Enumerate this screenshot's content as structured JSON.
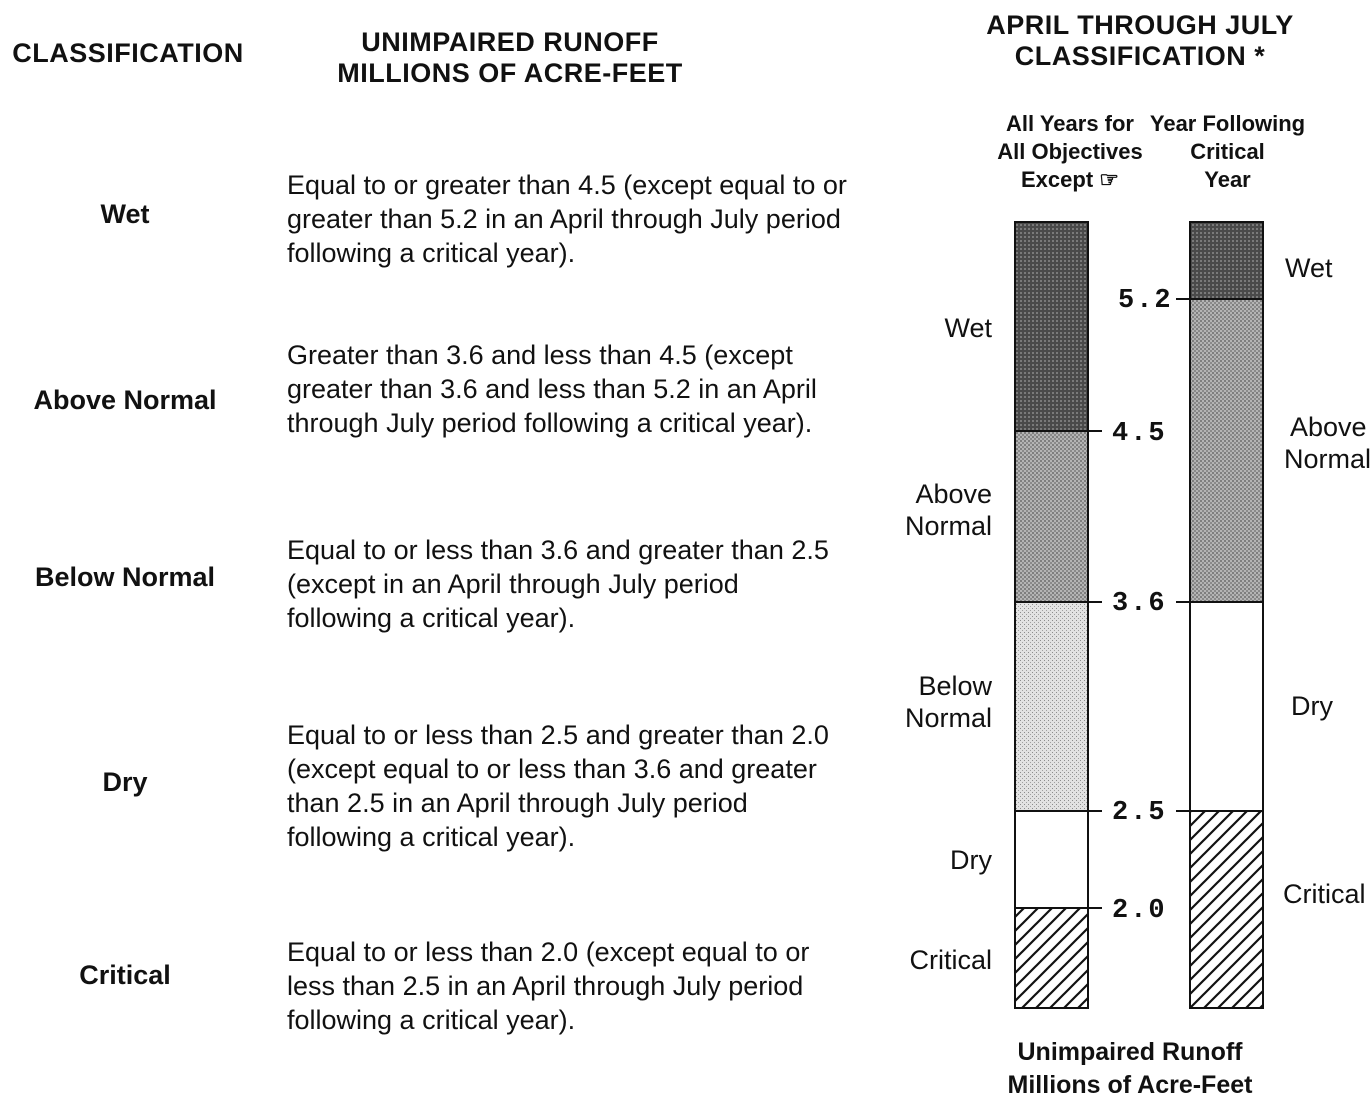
{
  "left_table": {
    "classification_header": "CLASSIFICATION",
    "runoff_header_line1": "UNIMPAIRED RUNOFF",
    "runoff_header_line2": "MILLIONS OF ACRE-FEET",
    "rows": [
      {
        "name": "Wet",
        "description": "Equal to or greater than 4.5 (except equal to or greater than 5.2 in an April through July period following a critical year)."
      },
      {
        "name": "Above Normal",
        "description": "Greater than 3.6 and less than 4.5 (except greater than 3.6 and less than 5.2 in an April through July period following a critical year)."
      },
      {
        "name": "Below Normal",
        "description": "Equal to or less than 3.6 and greater than 2.5 (except in an April through July period following a critical year)."
      },
      {
        "name": "Dry",
        "description": "Equal to or less than 2.5 and greater than 2.0 (except equal to or less than 3.6 and greater than 2.5 in an April through July period following a critical year)."
      },
      {
        "name": "Critical",
        "description": "Equal to or less than 2.0 (except equal to or less than 2.5 in an April through July period following a critical year)."
      }
    ]
  },
  "diagram": {
    "title_line1": "APRIL THROUGH JULY",
    "title_line2": "CLASSIFICATION *",
    "col1_header": [
      "All Years for",
      "All Objectives",
      "Except ☞"
    ],
    "col2_header": [
      "Year Following",
      "Critical",
      "Year"
    ],
    "left_zone_labels": {
      "wet": "Wet",
      "above_normal": [
        "Above",
        "Normal"
      ],
      "below_normal": [
        "Below",
        "Normal"
      ],
      "dry": "Dry",
      "critical": "Critical"
    },
    "right_zone_labels": {
      "wet": "Wet",
      "above_normal": [
        "Above",
        "Normal"
      ],
      "dry": "Dry",
      "critical": "Critical"
    },
    "ticks": [
      "5.2",
      "4.5",
      "3.6",
      "2.5",
      "2.0"
    ],
    "footer_line1": "Unimpaired Runoff",
    "footer_line2": "Millions of Acre-Feet",
    "colors": {
      "wet": "#555555",
      "above_normal": "#9a9a9a",
      "below_normal": "#cfcfcf",
      "dry": "#ffffff",
      "hatch": "#111111"
    }
  }
}
